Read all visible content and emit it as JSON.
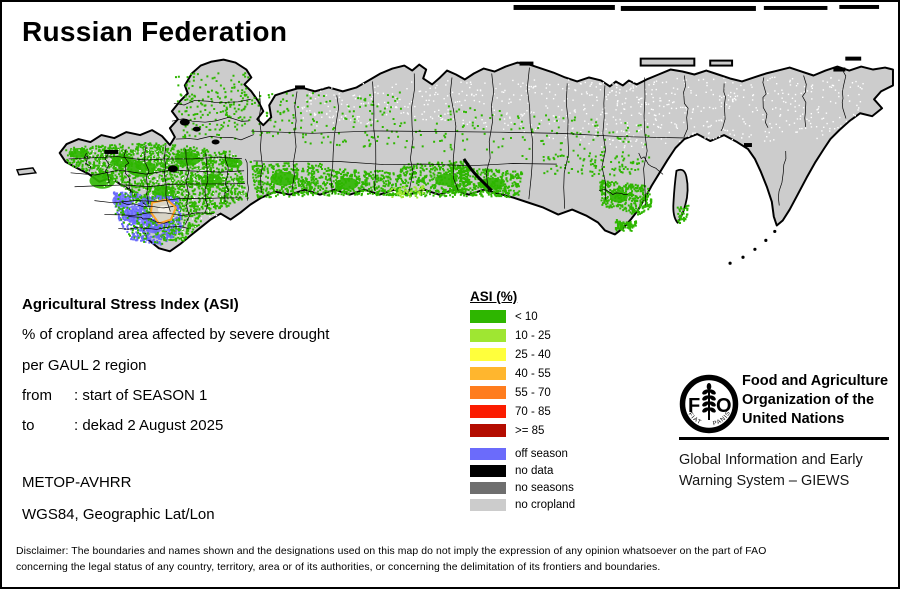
{
  "title": "Russian Federation",
  "info": {
    "asi_title": "Agricultural Stress Index (ASI)",
    "subtitle_line1": "% of cropland area affected by severe drought",
    "subtitle_line2": "per GAUL 2 region",
    "from_label": "from",
    "from_value": ": start of SEASON 1",
    "to_label": "to",
    "to_value": ": dekad 2 August 2025",
    "sensor": "METOP-AVHRR",
    "projection": "WGS84, Geographic Lat/Lon"
  },
  "legend": {
    "title": "ASI (%)",
    "classes": [
      {
        "label": "< 10",
        "color": "#2eb600"
      },
      {
        "label": "10 - 25",
        "color": "#9fe632"
      },
      {
        "label": "25 - 40",
        "color": "#ffff3c"
      },
      {
        "label": "40 - 55",
        "color": "#ffb62e"
      },
      {
        "label": "55 - 70",
        "color": "#ff7d1e"
      },
      {
        "label": "70 - 85",
        "color": "#fb1c00"
      },
      {
        "label": ">= 85",
        "color": "#b40c00"
      }
    ],
    "extra": [
      {
        "label": "off season",
        "color": "#6b6bfb"
      },
      {
        "label": "no data",
        "color": "#000000"
      },
      {
        "label": "no seasons",
        "color": "#6e6e6e"
      },
      {
        "label": "no cropland",
        "color": "#cccccc"
      }
    ]
  },
  "map": {
    "land_color": "#cccccc",
    "coast_color": "#000000",
    "region_border_color": "#000000",
    "highlight_region_border_color": "#ffa128"
  },
  "fao": {
    "logo": {
      "left": "F",
      "right": "O",
      "motto_left": "FIAT",
      "motto_right": "PANIS"
    },
    "org_lines": [
      "Food and Agriculture",
      "Organization of the",
      "United Nations"
    ],
    "giews_lines": [
      "Global Information and Early",
      "Warning System – GIEWS"
    ]
  },
  "disclaimer": {
    "line1": "Disclaimer: The boundaries and names shown and the designations used on this map do not imply the expression of any opinion whatsoever on the part of FAO",
    "line2": "concerning the legal status of any country, territory, area or of its authorities, or concerning the delimitation of its frontiers and boundaries."
  }
}
